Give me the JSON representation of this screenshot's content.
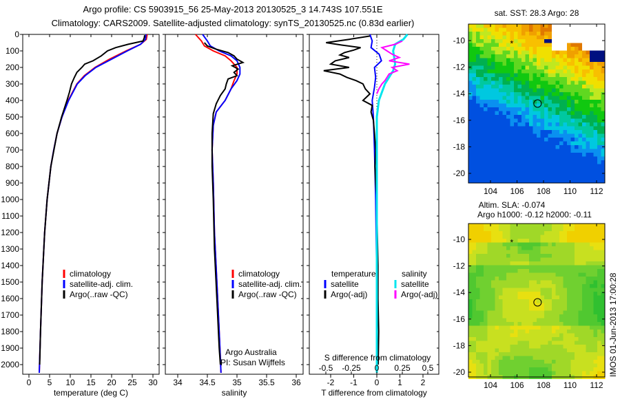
{
  "title": {
    "line1": "Argo profile: CS 5903915_56 25-May-2013 20130525_3 14.743S 107.551E",
    "line2": "Climatology: CARS2009. Satellite-adjusted climatology: synTS_20130525.nc (0.83d earlier)"
  },
  "footer_stamp": "IMOS 01-Jun-2013 17:00:28",
  "colors": {
    "climatology": "#ff0000",
    "satellite_adj": "#0000ff",
    "argo": "#000000",
    "sal_satellite": "#00e5ee",
    "sal_argo": "#ff00ff"
  },
  "chart_data": [
    {
      "type": "line",
      "id": "temperature",
      "xlabel": "temperature (deg C)",
      "xlim": [
        -1.5,
        31.5
      ],
      "ylim": [
        0,
        2060
      ],
      "xticks": [
        "0",
        "5",
        "10",
        "15",
        "20",
        "25",
        "30"
      ],
      "yticks": [
        "0",
        "100",
        "200",
        "300",
        "400",
        "500",
        "600",
        "700",
        "800",
        "900",
        "1000",
        "1100",
        "1200",
        "1300",
        "1400",
        "1500",
        "1600",
        "1700",
        "1800",
        "1900",
        "2000"
      ],
      "legend": [
        "climatology",
        "satellite-adj. clim.",
        "Argo(..raw -QC)"
      ],
      "series": [
        {
          "name": "climatology",
          "depth": [
            0,
            30,
            60,
            100,
            150,
            200,
            250,
            300,
            400,
            500,
            600,
            700,
            800,
            1000,
            1200,
            1500,
            1800,
            2050
          ],
          "values": [
            28.6,
            28.4,
            27,
            23.5,
            19.5,
            16,
            13.4,
            11.6,
            9.5,
            8,
            6.8,
            6,
            5.3,
            4.4,
            3.8,
            3.2,
            2.8,
            2.5
          ]
        },
        {
          "name": "satellite-adj. clim.",
          "depth": [
            0,
            30,
            60,
            100,
            150,
            200,
            250,
            300,
            400,
            500,
            600,
            700,
            800,
            1000,
            1200,
            1500,
            1800,
            2050
          ],
          "values": [
            28.3,
            28.2,
            27,
            23.8,
            20,
            16.2,
            13.6,
            11.7,
            9.6,
            8,
            6.8,
            6,
            5.3,
            4.4,
            3.8,
            3.2,
            2.8,
            2.5
          ]
        },
        {
          "name": "Argo(..raw -QC)",
          "depth": [
            5,
            20,
            40,
            60,
            80,
            100,
            130,
            160,
            180,
            200,
            230,
            260,
            300,
            350,
            400,
            500,
            600,
            800,
            1000,
            1200,
            1500,
            1800,
            2000
          ],
          "values": [
            28.0,
            27.9,
            27.6,
            24,
            21,
            19,
            17.5,
            15.5,
            13.5,
            12.8,
            11.6,
            11,
            10.3,
            9.8,
            9.2,
            7.9,
            6.8,
            5.3,
            4.4,
            3.8,
            3.2,
            2.8,
            2.6
          ]
        }
      ]
    },
    {
      "type": "line",
      "id": "salinity",
      "xlabel": "salinity",
      "xlim": [
        33.8,
        36.1
      ],
      "ylim": [
        0,
        2060
      ],
      "xticks": [
        "34",
        "34.5",
        "35",
        "35.5",
        "36"
      ],
      "legend": [
        "climatology",
        "satellite-adj. clim.",
        "Argo(..raw -QC)"
      ],
      "annotation": [
        "Argo Australia",
        "PI: Susan Wijffels"
      ],
      "series": [
        {
          "name": "climatology",
          "depth": [
            0,
            40,
            70,
            100,
            130,
            160,
            200,
            240,
            280,
            330,
            400,
            470,
            550,
            700,
            900,
            1200,
            1500,
            1800,
            2050
          ],
          "values": [
            34.3,
            34.4,
            34.45,
            34.6,
            34.8,
            34.9,
            35.0,
            35.0,
            34.95,
            34.9,
            34.8,
            34.65,
            34.6,
            34.58,
            34.6,
            34.62,
            34.66,
            34.7,
            34.73
          ]
        },
        {
          "name": "satellite-adj. clim.",
          "depth": [
            0,
            40,
            70,
            100,
            130,
            160,
            200,
            240,
            280,
            330,
            400,
            470,
            550,
            700,
            900,
            1200,
            1500,
            1800,
            2050
          ],
          "values": [
            34.42,
            34.5,
            34.55,
            34.7,
            34.9,
            35.0,
            35.05,
            35.05,
            35.0,
            34.9,
            34.8,
            34.65,
            34.6,
            34.58,
            34.6,
            34.62,
            34.66,
            34.7,
            34.73
          ]
        },
        {
          "name": "Argo(..raw -QC)",
          "depth": [
            50,
            70,
            90,
            110,
            130,
            150,
            170,
            190,
            210,
            230,
            250,
            270,
            300,
            330,
            370,
            420,
            480,
            600,
            800,
            1000,
            1300,
            1600,
            1900,
            2000
          ],
          "values": [
            34.45,
            34.5,
            34.65,
            34.85,
            34.95,
            35.0,
            35.1,
            34.92,
            35.02,
            34.95,
            35.0,
            34.85,
            34.82,
            34.8,
            34.72,
            34.65,
            34.6,
            34.58,
            34.58,
            34.6,
            34.62,
            34.66,
            34.7,
            34.72
          ]
        }
      ]
    },
    {
      "type": "line",
      "id": "difference",
      "xlabel": "T difference from climatology",
      "xlim": [
        -2.9,
        2.7
      ],
      "ylim": [
        0,
        2060
      ],
      "xticks": [
        "-2",
        "-1",
        "0",
        "1",
        "2"
      ],
      "secondary_xlabel": "S difference from climatology",
      "secondary_xticks": [
        "-0.5",
        "-0.25",
        "0",
        "0.25",
        "0.5"
      ],
      "legend": {
        "temperature_title": "temperature",
        "salinity_title": "salinity",
        "satellite": "satellite",
        "argo": "Argo(-adj)"
      },
      "series": [
        {
          "name": "T satellite",
          "axis": "T",
          "depth": [
            0,
            40,
            80,
            120,
            160,
            200,
            260,
            320,
            400,
            500,
            700,
            1000,
            1500,
            2050
          ],
          "values": [
            -0.3,
            -0.2,
            -0.25,
            0.1,
            0.2,
            -0.1,
            -0.05,
            -0.1,
            -0.2,
            -0.15,
            -0.1,
            -0.05,
            0,
            0
          ]
        },
        {
          "name": "T Argo(-adj)",
          "axis": "T",
          "depth": [
            10,
            30,
            50,
            65,
            80,
            95,
            110,
            125,
            140,
            160,
            180,
            200,
            220,
            240,
            260,
            280,
            300,
            330,
            360,
            400,
            430,
            470,
            520,
            600,
            700,
            800,
            900,
            1000,
            1200,
            1400,
            1600,
            1800,
            2000
          ],
          "values": [
            -0.3,
            -1.2,
            -2.2,
            -1.5,
            -0.7,
            -1.0,
            -1.4,
            -1.6,
            -1.2,
            -1.8,
            -2.0,
            -1.2,
            -2.3,
            -1.6,
            -1.3,
            -0.9,
            -0.6,
            -0.5,
            -0.3,
            -0.6,
            -0.2,
            -0.25,
            -0.15,
            -0.1,
            -0.05,
            -0.08,
            -0.05,
            0.0,
            0.02,
            0.05,
            0.05,
            0.08,
            0.06
          ]
        },
        {
          "name": "S satellite",
          "axis": "S",
          "depth": [
            0,
            30,
            60,
            100,
            140,
            180,
            220,
            260,
            300,
            350,
            400,
            500,
            700,
            1000,
            1500,
            2050
          ],
          "values": [
            0.3,
            0.26,
            0.18,
            0.16,
            0.17,
            0.18,
            0.16,
            0.12,
            0.08,
            0.05,
            0.02,
            0.0,
            0.0,
            0.0,
            0.0,
            0.0
          ]
        },
        {
          "name": "S Argo(-adj)",
          "axis": "S",
          "depth": [
            40,
            60,
            80,
            100,
            120,
            140,
            160,
            180,
            200,
            220,
            240,
            260,
            280,
            300,
            330,
            360
          ],
          "values": [
            0.25,
            0.18,
            0.05,
            0.1,
            0.15,
            0.22,
            0.12,
            0.32,
            0.15,
            0.2,
            0.12,
            0.1,
            0.08,
            0.05,
            0.02,
            0.0
          ]
        }
      ]
    },
    {
      "type": "heatmap",
      "id": "sst_map",
      "title": "sat. SST: 28.3 Argo: 28",
      "xlim": [
        102.4,
        112.8
      ],
      "ylim": [
        -20.8,
        -8.8
      ],
      "xticks": [
        "104",
        "106",
        "108",
        "110",
        "112"
      ],
      "yticks": [
        "-10",
        "-12",
        "-14",
        "-16",
        "-18",
        "-20"
      ],
      "profile_position": [
        107.55,
        -14.74
      ]
    },
    {
      "type": "heatmap",
      "id": "sla_map",
      "title": [
        "Altim. SLA: -0.074",
        "Argo h1000: -0.12 h2000: -0.11"
      ],
      "xlim": [
        102.4,
        112.8
      ],
      "ylim": [
        -20.4,
        -8.8
      ],
      "xticks": [
        "104",
        "106",
        "108",
        "110",
        "112"
      ],
      "yticks": [
        "-10",
        "-12",
        "-14",
        "-16",
        "-18",
        "-20"
      ],
      "profile_position": [
        107.55,
        -14.74
      ]
    }
  ]
}
